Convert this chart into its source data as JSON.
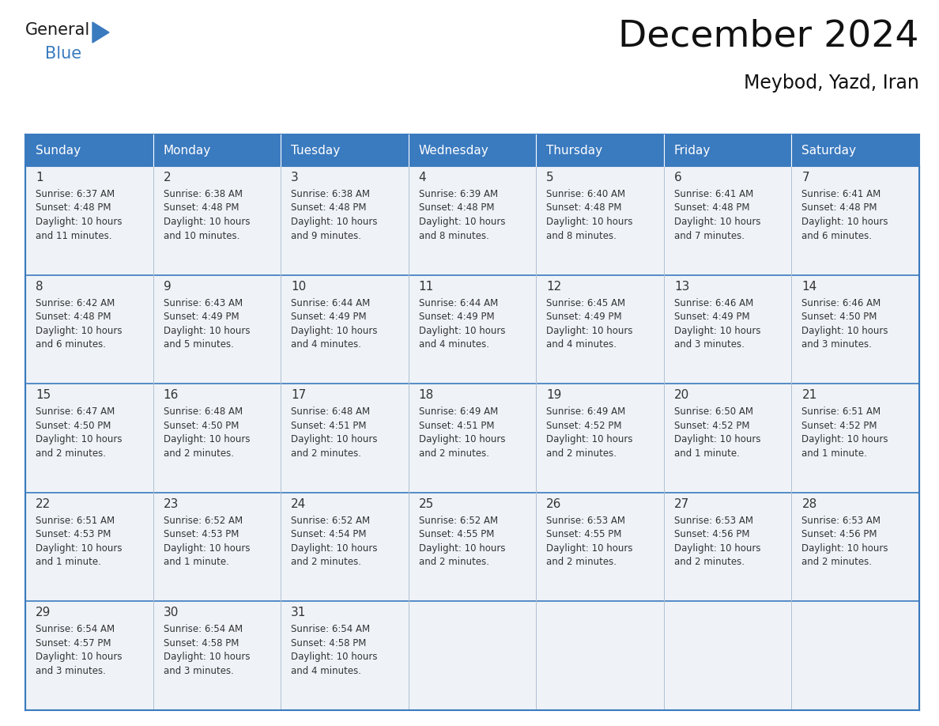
{
  "title": "December 2024",
  "subtitle": "Meybod, Yazd, Iran",
  "days_of_week": [
    "Sunday",
    "Monday",
    "Tuesday",
    "Wednesday",
    "Thursday",
    "Friday",
    "Saturday"
  ],
  "header_bg": "#3a7abf",
  "header_text_color": "#ffffff",
  "cell_bg": "#eff3f8",
  "grid_line_color": "#3a7abf",
  "cell_border_color": "#b0c0d0",
  "day_num_color": "#333333",
  "cell_text_color": "#333333",
  "days": [
    {
      "day": 1,
      "col": 0,
      "row": 0,
      "sunrise": "6:37 AM",
      "sunset": "4:48 PM",
      "dl1": "Daylight: 10 hours",
      "dl2": "and 11 minutes."
    },
    {
      "day": 2,
      "col": 1,
      "row": 0,
      "sunrise": "6:38 AM",
      "sunset": "4:48 PM",
      "dl1": "Daylight: 10 hours",
      "dl2": "and 10 minutes."
    },
    {
      "day": 3,
      "col": 2,
      "row": 0,
      "sunrise": "6:38 AM",
      "sunset": "4:48 PM",
      "dl1": "Daylight: 10 hours",
      "dl2": "and 9 minutes."
    },
    {
      "day": 4,
      "col": 3,
      "row": 0,
      "sunrise": "6:39 AM",
      "sunset": "4:48 PM",
      "dl1": "Daylight: 10 hours",
      "dl2": "and 8 minutes."
    },
    {
      "day": 5,
      "col": 4,
      "row": 0,
      "sunrise": "6:40 AM",
      "sunset": "4:48 PM",
      "dl1": "Daylight: 10 hours",
      "dl2": "and 8 minutes."
    },
    {
      "day": 6,
      "col": 5,
      "row": 0,
      "sunrise": "6:41 AM",
      "sunset": "4:48 PM",
      "dl1": "Daylight: 10 hours",
      "dl2": "and 7 minutes."
    },
    {
      "day": 7,
      "col": 6,
      "row": 0,
      "sunrise": "6:41 AM",
      "sunset": "4:48 PM",
      "dl1": "Daylight: 10 hours",
      "dl2": "and 6 minutes."
    },
    {
      "day": 8,
      "col": 0,
      "row": 1,
      "sunrise": "6:42 AM",
      "sunset": "4:48 PM",
      "dl1": "Daylight: 10 hours",
      "dl2": "and 6 minutes."
    },
    {
      "day": 9,
      "col": 1,
      "row": 1,
      "sunrise": "6:43 AM",
      "sunset": "4:49 PM",
      "dl1": "Daylight: 10 hours",
      "dl2": "and 5 minutes."
    },
    {
      "day": 10,
      "col": 2,
      "row": 1,
      "sunrise": "6:44 AM",
      "sunset": "4:49 PM",
      "dl1": "Daylight: 10 hours",
      "dl2": "and 4 minutes."
    },
    {
      "day": 11,
      "col": 3,
      "row": 1,
      "sunrise": "6:44 AM",
      "sunset": "4:49 PM",
      "dl1": "Daylight: 10 hours",
      "dl2": "and 4 minutes."
    },
    {
      "day": 12,
      "col": 4,
      "row": 1,
      "sunrise": "6:45 AM",
      "sunset": "4:49 PM",
      "dl1": "Daylight: 10 hours",
      "dl2": "and 4 minutes."
    },
    {
      "day": 13,
      "col": 5,
      "row": 1,
      "sunrise": "6:46 AM",
      "sunset": "4:49 PM",
      "dl1": "Daylight: 10 hours",
      "dl2": "and 3 minutes."
    },
    {
      "day": 14,
      "col": 6,
      "row": 1,
      "sunrise": "6:46 AM",
      "sunset": "4:50 PM",
      "dl1": "Daylight: 10 hours",
      "dl2": "and 3 minutes."
    },
    {
      "day": 15,
      "col": 0,
      "row": 2,
      "sunrise": "6:47 AM",
      "sunset": "4:50 PM",
      "dl1": "Daylight: 10 hours",
      "dl2": "and 2 minutes."
    },
    {
      "day": 16,
      "col": 1,
      "row": 2,
      "sunrise": "6:48 AM",
      "sunset": "4:50 PM",
      "dl1": "Daylight: 10 hours",
      "dl2": "and 2 minutes."
    },
    {
      "day": 17,
      "col": 2,
      "row": 2,
      "sunrise": "6:48 AM",
      "sunset": "4:51 PM",
      "dl1": "Daylight: 10 hours",
      "dl2": "and 2 minutes."
    },
    {
      "day": 18,
      "col": 3,
      "row": 2,
      "sunrise": "6:49 AM",
      "sunset": "4:51 PM",
      "dl1": "Daylight: 10 hours",
      "dl2": "and 2 minutes."
    },
    {
      "day": 19,
      "col": 4,
      "row": 2,
      "sunrise": "6:49 AM",
      "sunset": "4:52 PM",
      "dl1": "Daylight: 10 hours",
      "dl2": "and 2 minutes."
    },
    {
      "day": 20,
      "col": 5,
      "row": 2,
      "sunrise": "6:50 AM",
      "sunset": "4:52 PM",
      "dl1": "Daylight: 10 hours",
      "dl2": "and 1 minute."
    },
    {
      "day": 21,
      "col": 6,
      "row": 2,
      "sunrise": "6:51 AM",
      "sunset": "4:52 PM",
      "dl1": "Daylight: 10 hours",
      "dl2": "and 1 minute."
    },
    {
      "day": 22,
      "col": 0,
      "row": 3,
      "sunrise": "6:51 AM",
      "sunset": "4:53 PM",
      "dl1": "Daylight: 10 hours",
      "dl2": "and 1 minute."
    },
    {
      "day": 23,
      "col": 1,
      "row": 3,
      "sunrise": "6:52 AM",
      "sunset": "4:53 PM",
      "dl1": "Daylight: 10 hours",
      "dl2": "and 1 minute."
    },
    {
      "day": 24,
      "col": 2,
      "row": 3,
      "sunrise": "6:52 AM",
      "sunset": "4:54 PM",
      "dl1": "Daylight: 10 hours",
      "dl2": "and 2 minutes."
    },
    {
      "day": 25,
      "col": 3,
      "row": 3,
      "sunrise": "6:52 AM",
      "sunset": "4:55 PM",
      "dl1": "Daylight: 10 hours",
      "dl2": "and 2 minutes."
    },
    {
      "day": 26,
      "col": 4,
      "row": 3,
      "sunrise": "6:53 AM",
      "sunset": "4:55 PM",
      "dl1": "Daylight: 10 hours",
      "dl2": "and 2 minutes."
    },
    {
      "day": 27,
      "col": 5,
      "row": 3,
      "sunrise": "6:53 AM",
      "sunset": "4:56 PM",
      "dl1": "Daylight: 10 hours",
      "dl2": "and 2 minutes."
    },
    {
      "day": 28,
      "col": 6,
      "row": 3,
      "sunrise": "6:53 AM",
      "sunset": "4:56 PM",
      "dl1": "Daylight: 10 hours",
      "dl2": "and 2 minutes."
    },
    {
      "day": 29,
      "col": 0,
      "row": 4,
      "sunrise": "6:54 AM",
      "sunset": "4:57 PM",
      "dl1": "Daylight: 10 hours",
      "dl2": "and 3 minutes."
    },
    {
      "day": 30,
      "col": 1,
      "row": 4,
      "sunrise": "6:54 AM",
      "sunset": "4:58 PM",
      "dl1": "Daylight: 10 hours",
      "dl2": "and 3 minutes."
    },
    {
      "day": 31,
      "col": 2,
      "row": 4,
      "sunrise": "6:54 AM",
      "sunset": "4:58 PM",
      "dl1": "Daylight: 10 hours",
      "dl2": "and 4 minutes."
    }
  ],
  "num_rows": 5,
  "num_cols": 7,
  "logo_color1": "#1a1a1a",
  "logo_color2": "#3a7abf"
}
